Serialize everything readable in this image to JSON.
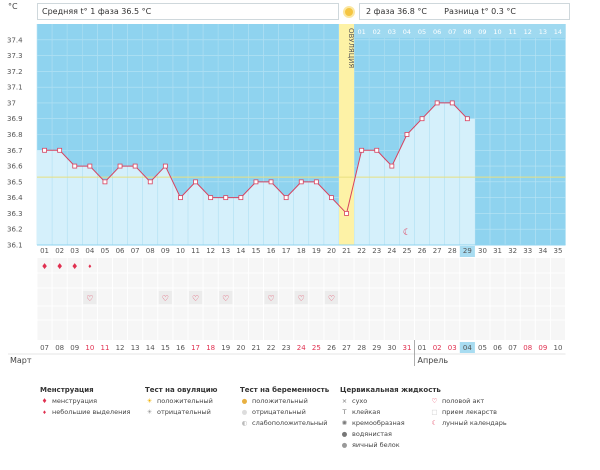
{
  "header": {
    "unit": "°C",
    "phase1_label": "Средняя t° 1 фаза",
    "phase1_value": "36.5 °C",
    "phase2_label": "2 фаза",
    "phase2_value": "36.8 °C",
    "diff_label": "Разница t°",
    "diff_value": "0.3 °C"
  },
  "ovulation_label": "ОВУЛЯЦИЯ",
  "chart_data": {
    "type": "line",
    "ylim": [
      36.1,
      37.5
    ],
    "yticks": [
      "37.4",
      "37.3",
      "37.2",
      "37.1",
      "37",
      "36.9",
      "36.8",
      "36.7",
      "36.6",
      "36.5",
      "36.4",
      "36.3",
      "36.2",
      "36.1"
    ],
    "cycle_days": [
      "01",
      "02",
      "03",
      "04",
      "05",
      "06",
      "07",
      "08",
      "09",
      "10",
      "11",
      "12",
      "13",
      "14",
      "15",
      "16",
      "17",
      "18",
      "19",
      "20",
      "21",
      "22",
      "23",
      "24",
      "25",
      "26",
      "27",
      "28",
      "29",
      "30",
      "31",
      "32",
      "33",
      "34",
      "35"
    ],
    "temps": [
      36.7,
      36.7,
      36.6,
      36.6,
      36.5,
      36.6,
      36.6,
      36.5,
      36.6,
      36.4,
      36.5,
      36.4,
      36.4,
      36.4,
      36.5,
      36.5,
      36.4,
      36.5,
      36.5,
      36.4,
      36.3,
      36.7,
      36.7,
      36.6,
      36.8,
      36.9,
      37.0,
      37.0,
      36.9
    ],
    "coverline": 36.53,
    "ovulation_day": 21,
    "today_index": 29,
    "phase2_top_days": [
      "01",
      "02",
      "03",
      "04",
      "05",
      "06",
      "07",
      "08",
      "09",
      "10",
      "11",
      "12",
      "13",
      "14"
    ],
    "calendar_dates": [
      "07",
      "08",
      "09",
      "10",
      "11",
      "12",
      "13",
      "14",
      "15",
      "16",
      "17",
      "18",
      "19",
      "20",
      "21",
      "22",
      "23",
      "24",
      "25",
      "26",
      "27",
      "28",
      "29",
      "30",
      "31",
      "01",
      "02",
      "03",
      "04",
      "05",
      "06",
      "07",
      "08",
      "09",
      "10"
    ],
    "red_dates_idx": [
      3,
      4,
      10,
      11,
      17,
      18,
      24,
      26,
      27,
      32,
      33
    ],
    "month_march": "Март",
    "month_april": "Апрель",
    "menstruation_days": [
      1,
      2,
      3
    ],
    "spotting_days": [
      4
    ],
    "intercourse_days": [
      4,
      9,
      11,
      13,
      16,
      18,
      20
    ],
    "lunar_day": 25
  },
  "legend": {
    "menstruation_title": "Менструация",
    "menstruation_item": "менструация",
    "spotting_item": "небольшие выделения",
    "ovtest_title": "Тест на овуляцию",
    "ovtest_pos": "положительный",
    "ovtest_neg": "отрицательный",
    "preg_title": "Тест на беременность",
    "preg_pos": "положительный",
    "preg_neg": "отрицательный",
    "preg_weak": "слабоположительный",
    "fluid_title": "Цервикальная жидкость",
    "fluid_dry": "сухо",
    "fluid_sticky": "клейкая",
    "fluid_creamy": "кремообразная",
    "fluid_watery": "водянистая",
    "fluid_eggwhite": "яичный белок",
    "sex": "половой акт",
    "meds": "прием лекарств",
    "lunar": "лунный календарь"
  }
}
